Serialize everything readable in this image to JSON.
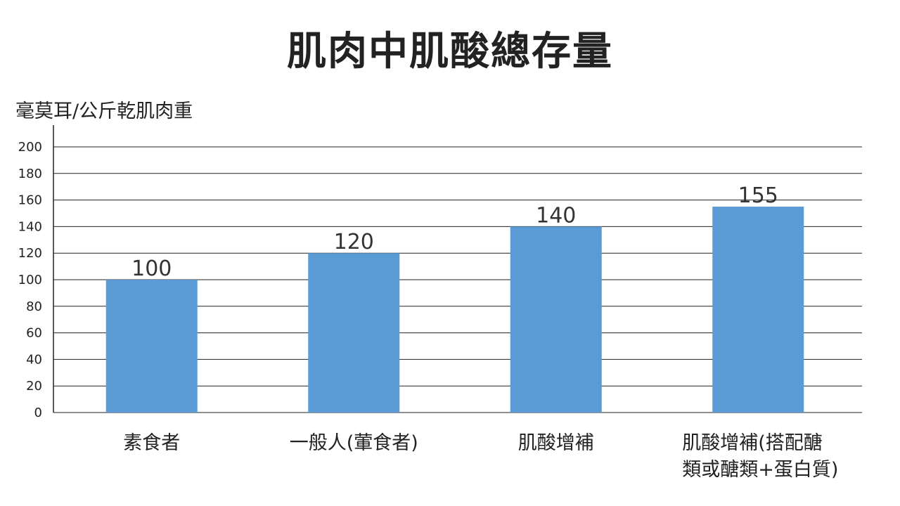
{
  "chart_data": {
    "type": "bar",
    "title": "肌肉中肌酸總存量",
    "ylabel": "毫莫耳/公斤乾肌肉重",
    "xlabel": "",
    "ylim": [
      0,
      200
    ],
    "yticks": [
      0,
      20,
      40,
      60,
      80,
      100,
      120,
      140,
      160,
      180,
      200
    ],
    "categories": [
      "素食者",
      "一般人(葷食者)",
      "肌酸增補",
      "肌酸增補(搭配醣類或醣類+蛋白質)"
    ],
    "category_lines": [
      [
        "素食者"
      ],
      [
        "一般人(葷食者)"
      ],
      [
        "肌酸增補"
      ],
      [
        "肌酸增補(搭配醣",
        "類或醣類+蛋白質)"
      ]
    ],
    "values": [
      100,
      120,
      140,
      155
    ],
    "data_labels": [
      "100",
      "120",
      "140",
      "155"
    ],
    "bar_color": "#5b9bd5",
    "grid": true
  }
}
